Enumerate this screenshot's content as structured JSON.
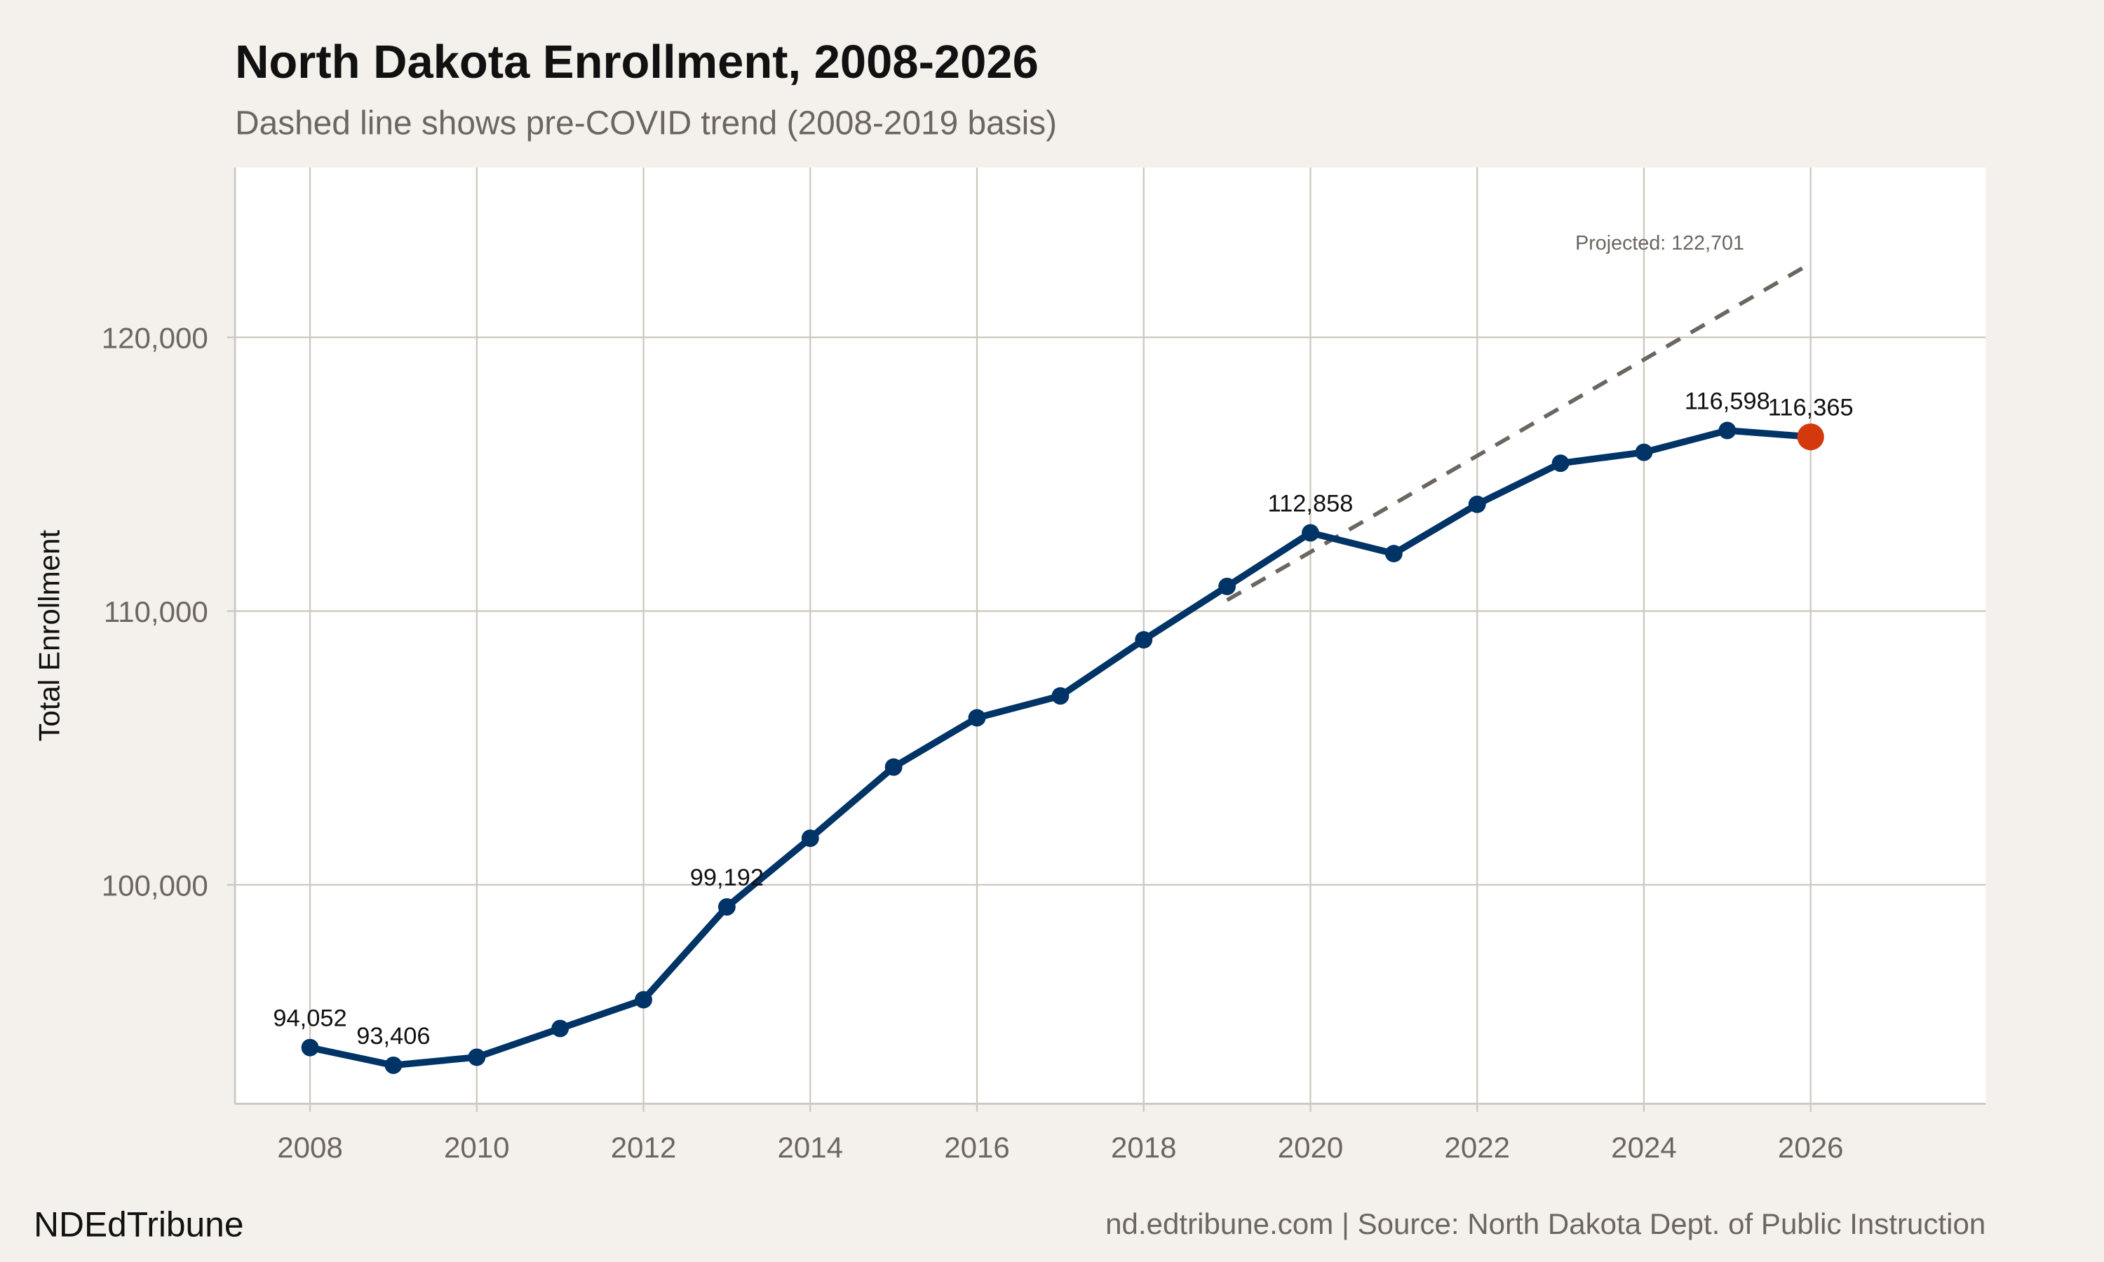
{
  "brand": "NDEdTribune",
  "footer_source": "nd.edtribune.com | Source: North Dakota Dept. of Public Instruction",
  "chart_data": {
    "type": "line",
    "title": "North Dakota Enrollment, 2008-2026",
    "subtitle": "Dashed line shows pre-COVID trend (2008-2019 basis)",
    "xlabel": "",
    "ylabel": "Total Enrollment",
    "xlim": [
      2007.1,
      2028.1
    ],
    "ylim": [
      92000,
      126200
    ],
    "grid": true,
    "x_ticks": [
      2008,
      2010,
      2012,
      2014,
      2016,
      2018,
      2020,
      2022,
      2024,
      2026
    ],
    "y_ticks": [
      100000,
      110000,
      120000
    ],
    "y_tick_labels": [
      "100,000",
      "110,000",
      "120,000"
    ],
    "x": [
      2008,
      2009,
      2010,
      2011,
      2012,
      2013,
      2014,
      2015,
      2016,
      2017,
      2018,
      2019,
      2020,
      2021,
      2022,
      2023,
      2024,
      2025,
      2026
    ],
    "values": [
      94052,
      93406,
      93700,
      94750,
      95800,
      99192,
      101700,
      104300,
      106100,
      106900,
      108950,
      110900,
      112858,
      112100,
      113900,
      115400,
      115800,
      116598,
      116365
    ],
    "data_labels": [
      {
        "x": 2008,
        "text": "94,052"
      },
      {
        "x": 2009,
        "text": "93,406"
      },
      {
        "x": 2013,
        "text": "99,192"
      },
      {
        "x": 2020,
        "text": "112,858"
      },
      {
        "x": 2025,
        "text": "116,598"
      },
      {
        "x": 2026,
        "text": "116,365"
      }
    ],
    "trend": {
      "x": [
        2019,
        2026
      ],
      "values": [
        110400,
        122701
      ],
      "style": "dashed",
      "annotation": "Projected: 122,701"
    },
    "colors": {
      "line": "#003366",
      "highlight": "#d4380d",
      "trend": "#6b6660",
      "grid": "#cdc8bf",
      "panel": "#ffffff",
      "background": "#f4f1ec"
    }
  }
}
